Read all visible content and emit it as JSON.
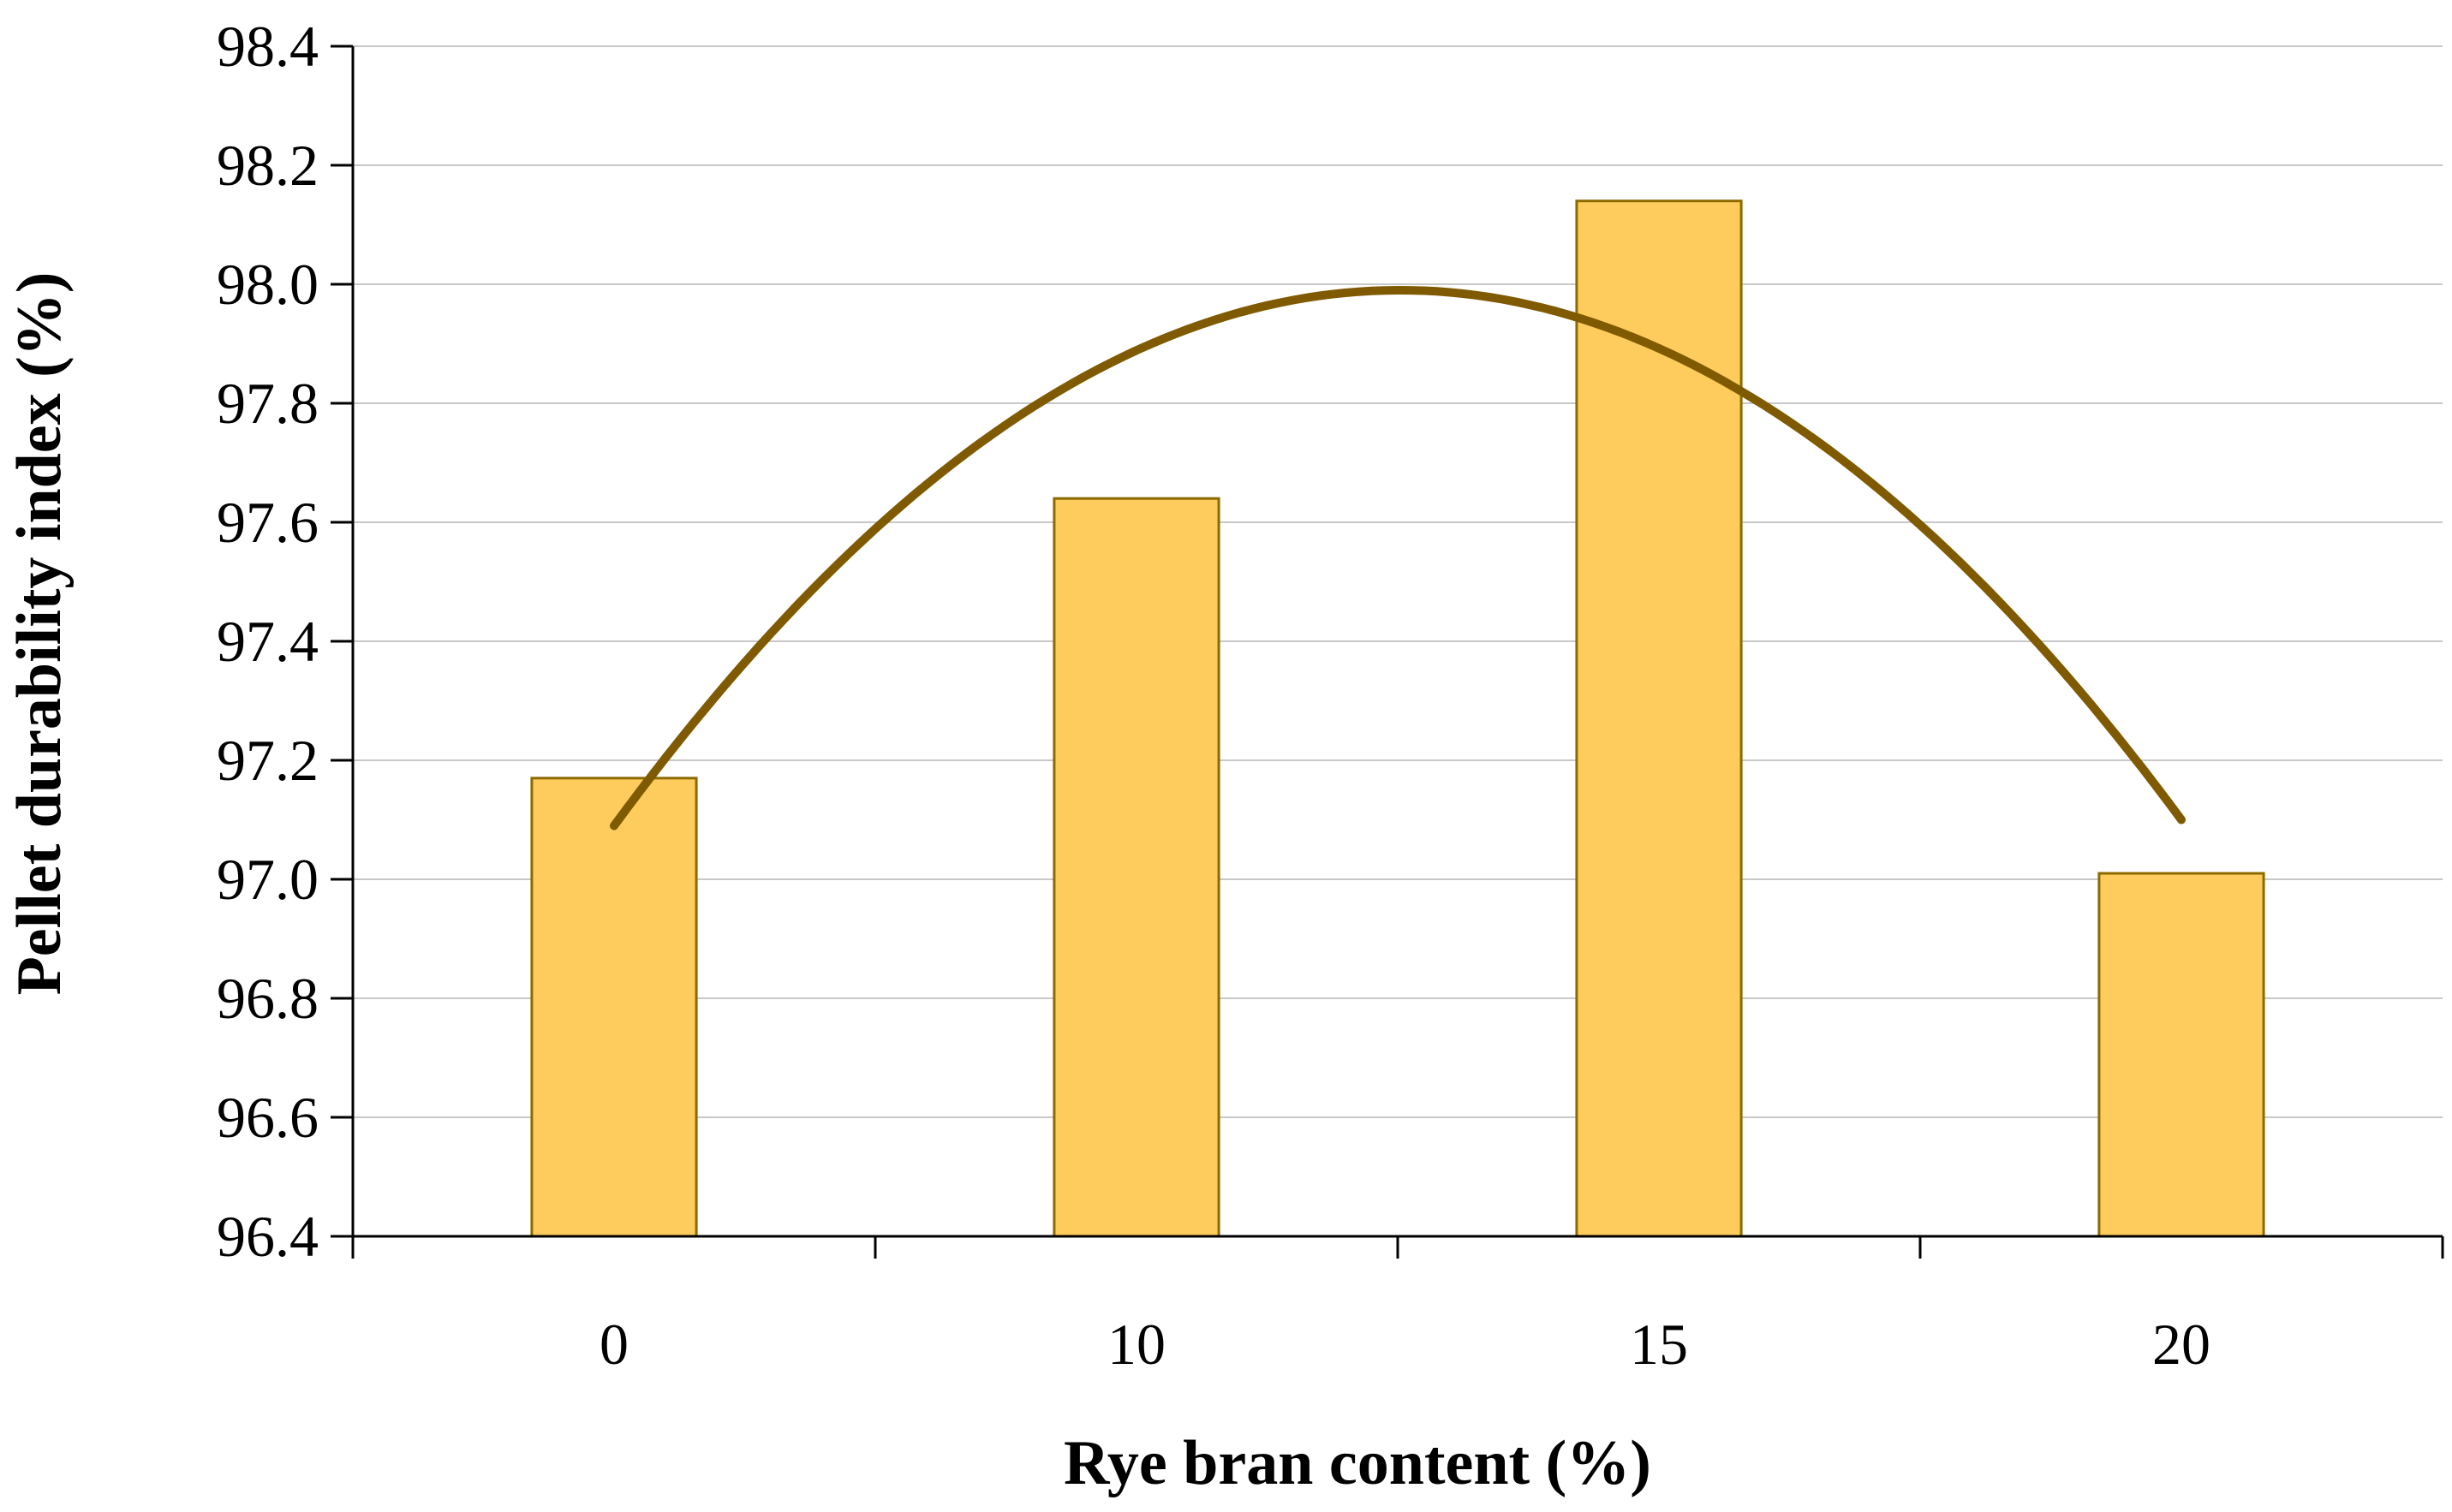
{
  "chart_data": {
    "type": "bar",
    "categories": [
      "0",
      "10",
      "15",
      "20"
    ],
    "series": [
      {
        "values": [
          97.17,
          97.64,
          98.14,
          97.01
        ]
      }
    ],
    "trendline": {
      "kind": "polynomial-2",
      "x_index": [
        1,
        4
      ],
      "values_at": {
        "start": 97.09,
        "peak": 97.99,
        "end": 97.1
      }
    },
    "xlabel": "Rye bran content (%)",
    "ylabel": "Pellet durability index (%)",
    "ylim": [
      96.4,
      98.4
    ],
    "yticks": [
      "96.4",
      "96.6",
      "96.8",
      "97.0",
      "97.2",
      "97.4",
      "97.6",
      "97.8",
      "98.0",
      "98.2",
      "98.4"
    ],
    "grid": true,
    "legend": "none"
  },
  "colors": {
    "bar_fill": "#FECC5C",
    "bar_stroke": "#8C6A00",
    "trend": "#7F5A00",
    "grid": "#C8C8C8",
    "axis": "#000000"
  }
}
